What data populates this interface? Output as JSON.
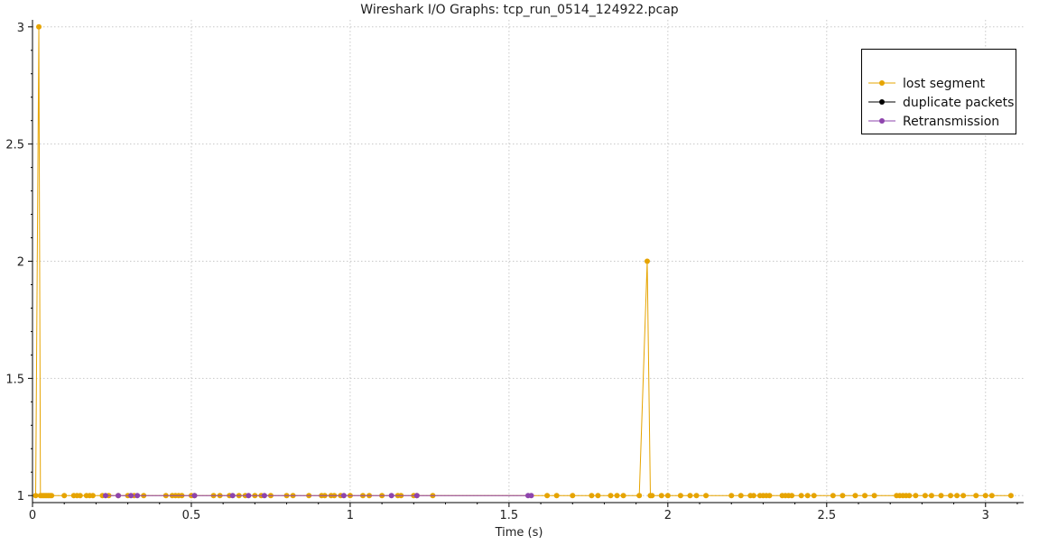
{
  "chart_data": {
    "type": "line",
    "title": "Wireshark I/O Graphs: tcp_run_0514_124922.pcap",
    "xlabel": "Time (s)",
    "ylabel": "",
    "xlim": [
      0,
      3.12
    ],
    "ylim": [
      0.97,
      3.03
    ],
    "x_ticks": [
      0,
      0.5,
      1,
      1.5,
      2,
      2.5,
      3
    ],
    "x_tick_labels": [
      "0",
      "0.5",
      "1",
      "1.5",
      "2",
      "2.5",
      "3"
    ],
    "y_ticks": [
      1,
      1.5,
      2,
      2.5,
      3
    ],
    "y_tick_labels": [
      "1",
      "1.5",
      "2",
      "2.5",
      "3"
    ],
    "grid": true,
    "legend_position": "top-right",
    "series": [
      {
        "name": "lost segment",
        "color": "#e6a400",
        "x": [
          0.01,
          0.02,
          0.025,
          0.03,
          0.035,
          0.04,
          0.045,
          0.05,
          0.055,
          0.06,
          0.1,
          0.13,
          0.14,
          0.15,
          0.17,
          0.18,
          0.19,
          0.22,
          0.24,
          0.27,
          0.3,
          0.32,
          0.35,
          0.42,
          0.44,
          0.45,
          0.46,
          0.47,
          0.5,
          0.51,
          0.57,
          0.59,
          0.62,
          0.65,
          0.67,
          0.7,
          0.72,
          0.75,
          0.8,
          0.82,
          0.87,
          0.91,
          0.92,
          0.94,
          0.95,
          0.97,
          1.0,
          1.04,
          1.06,
          1.1,
          1.15,
          1.16,
          1.2,
          1.21,
          1.26,
          1.62,
          1.65,
          1.7,
          1.76,
          1.78,
          1.82,
          1.84,
          1.86,
          1.91,
          1.935,
          1.945,
          1.95,
          1.98,
          2.0,
          2.04,
          2.07,
          2.09,
          2.12,
          2.2,
          2.23,
          2.26,
          2.27,
          2.29,
          2.3,
          2.31,
          2.32,
          2.36,
          2.37,
          2.38,
          2.39,
          2.42,
          2.44,
          2.46,
          2.52,
          2.55,
          2.59,
          2.62,
          2.65,
          2.72,
          2.73,
          2.74,
          2.75,
          2.76,
          2.78,
          2.81,
          2.83,
          2.86,
          2.89,
          2.91,
          2.93,
          2.97,
          3.0,
          3.02,
          3.08
        ],
        "y": [
          1,
          3,
          1,
          1,
          1,
          1,
          1,
          1,
          1,
          1,
          1,
          1,
          1,
          1,
          1,
          1,
          1,
          1,
          1,
          1,
          1,
          1,
          1,
          1,
          1,
          1,
          1,
          1,
          1,
          1,
          1,
          1,
          1,
          1,
          1,
          1,
          1,
          1,
          1,
          1,
          1,
          1,
          1,
          1,
          1,
          1,
          1,
          1,
          1,
          1,
          1,
          1,
          1,
          1,
          1,
          1,
          1,
          1,
          1,
          1,
          1,
          1,
          1,
          1,
          2,
          1,
          1,
          1,
          1,
          1,
          1,
          1,
          1,
          1,
          1,
          1,
          1,
          1,
          1,
          1,
          1,
          1,
          1,
          1,
          1,
          1,
          1,
          1,
          1,
          1,
          1,
          1,
          1,
          1,
          1,
          1,
          1,
          1,
          1,
          1,
          1,
          1,
          1,
          1,
          1,
          1,
          1,
          1,
          1
        ]
      },
      {
        "name": "duplicate packets",
        "color": "#000000",
        "x": [],
        "y": []
      },
      {
        "name": "Retransmission",
        "color": "#8e44ad",
        "x": [
          0.23,
          0.27,
          0.31,
          0.33,
          0.51,
          0.63,
          0.68,
          0.73,
          0.98,
          1.13,
          1.21,
          1.56,
          1.57
        ],
        "y": [
          1,
          1,
          1,
          1,
          1,
          1,
          1,
          1,
          1,
          1,
          1,
          1,
          1
        ]
      }
    ]
  }
}
